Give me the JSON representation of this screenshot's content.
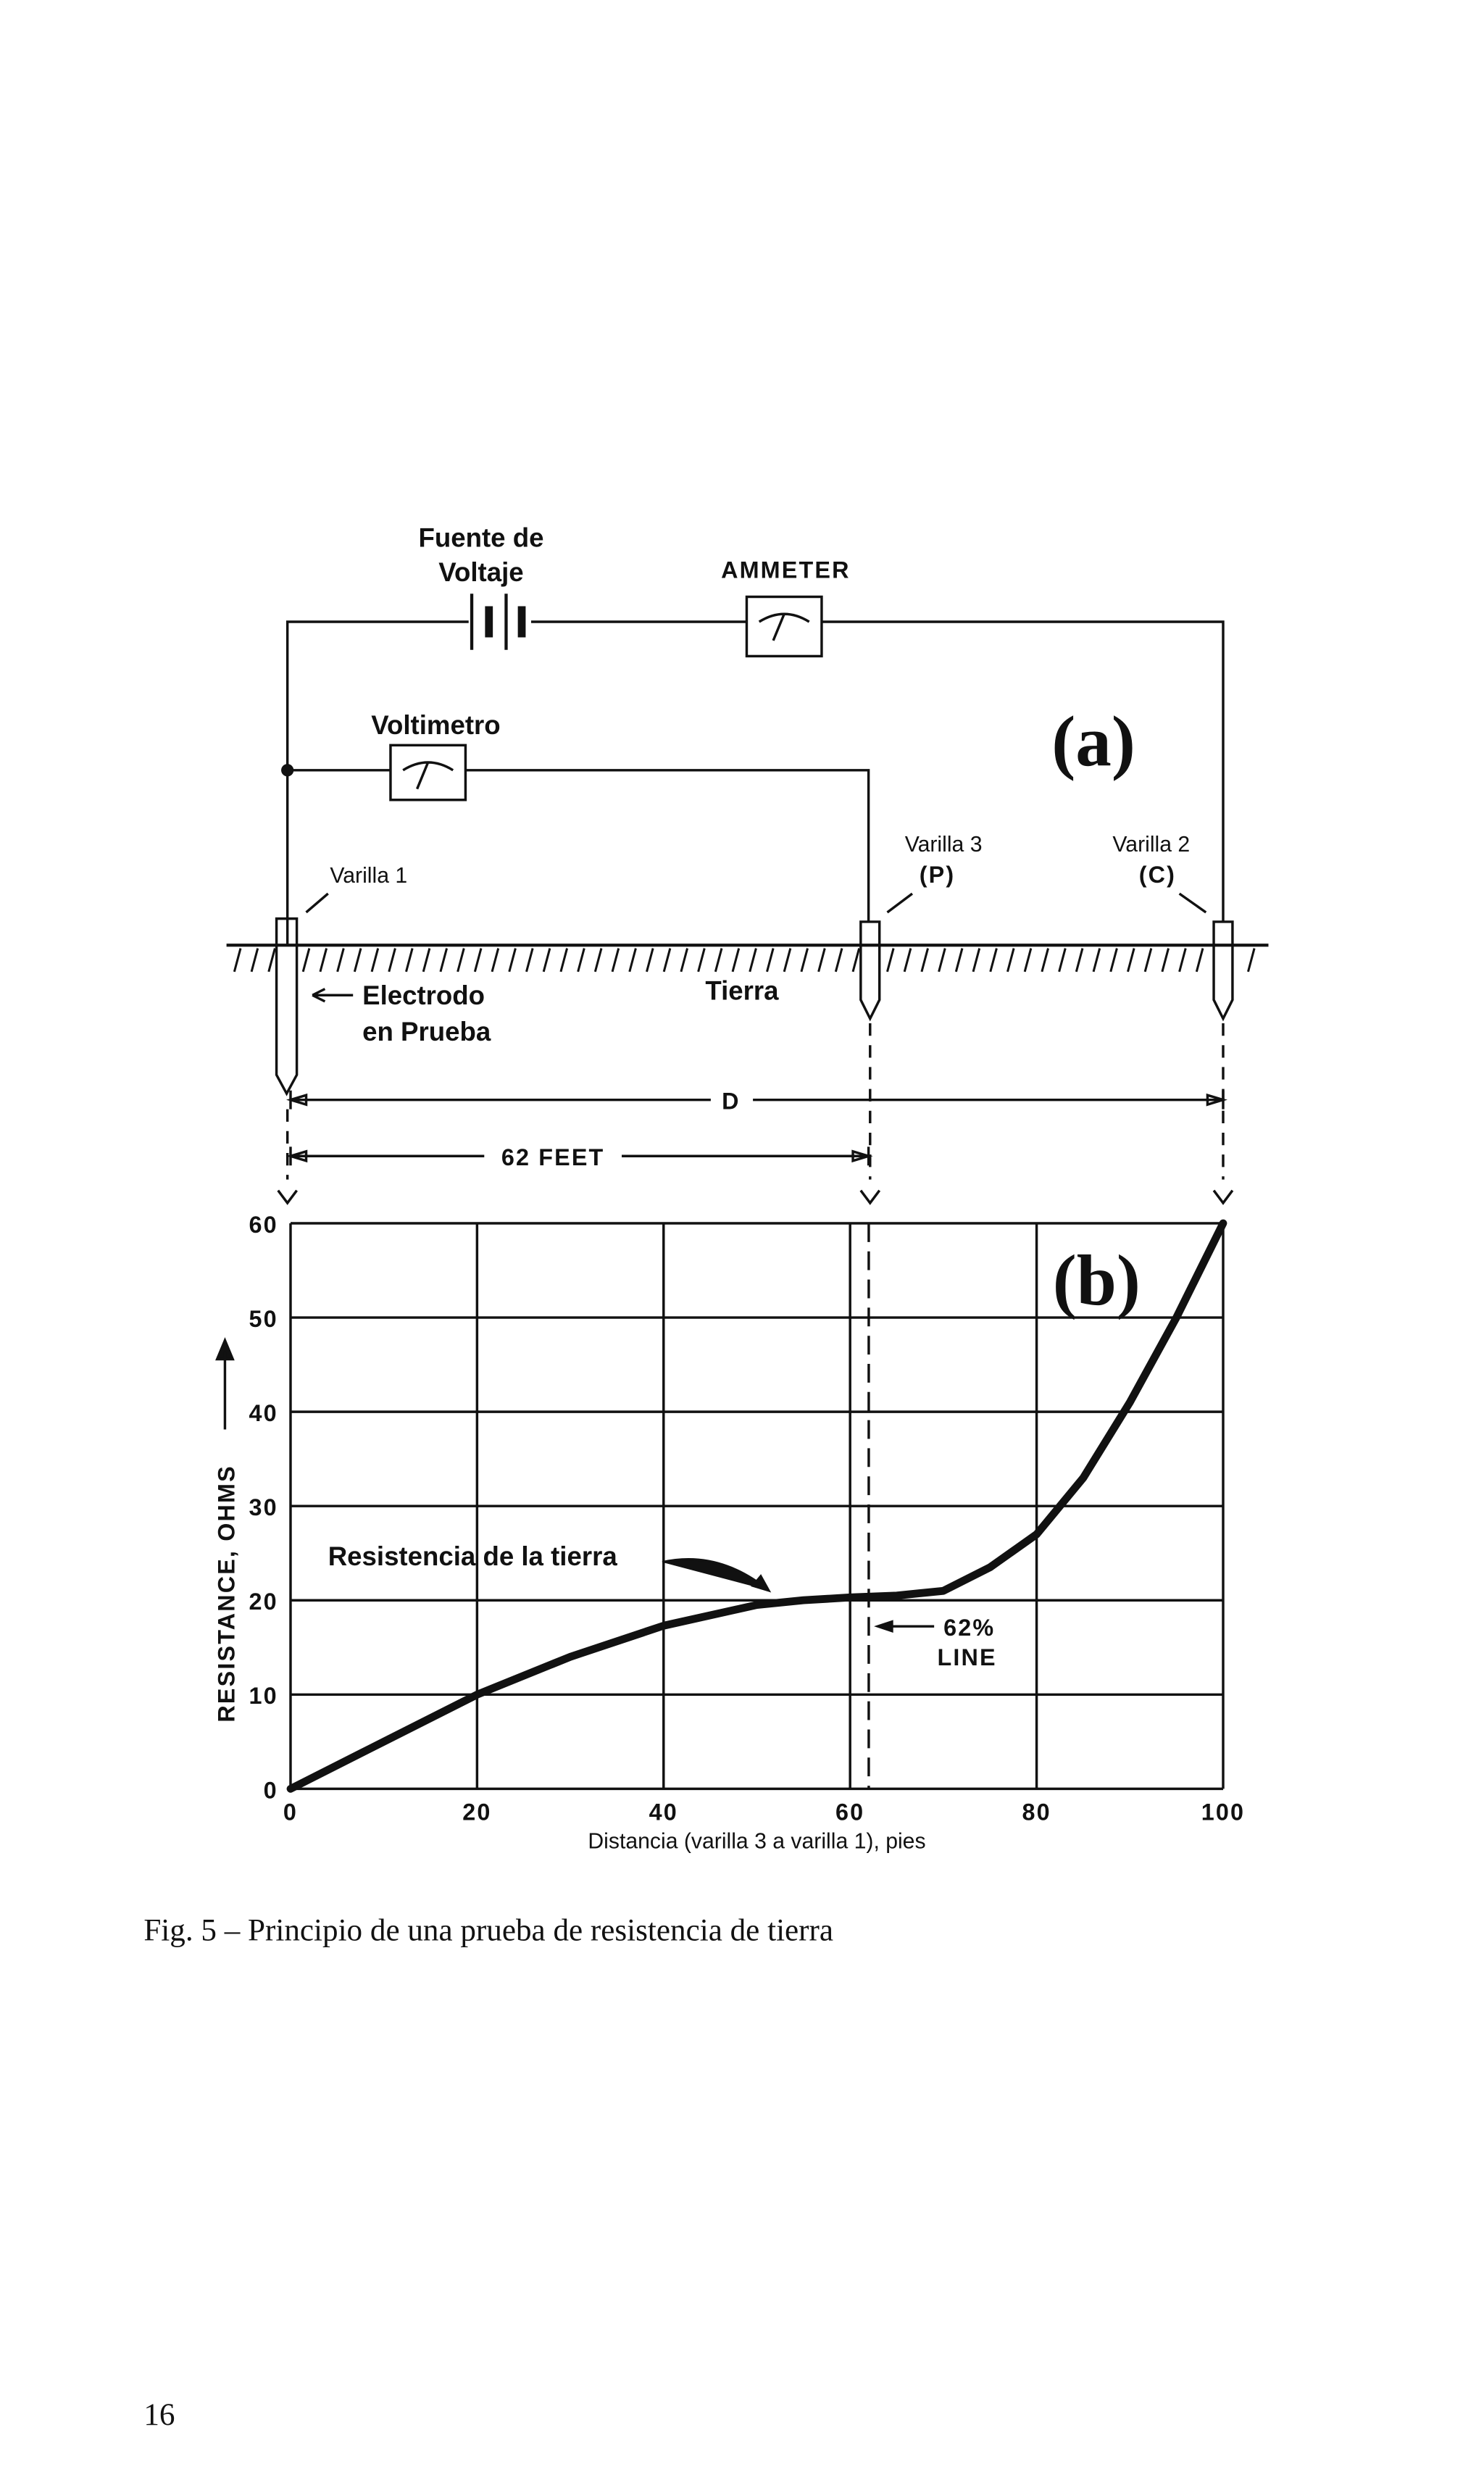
{
  "diagram": {
    "voltage_source": [
      "Fuente de",
      "Voltaje"
    ],
    "ammeter": "AMMETER",
    "voltmeter": "Voltimetro",
    "panel": "(a)",
    "rod1": "Varilla 1",
    "rod3": [
      "Varilla 3",
      "(P)"
    ],
    "rod2": [
      "Varilla 2",
      "(C)"
    ],
    "electrode": [
      "Electrodo",
      "en Prueba"
    ],
    "earth": "Tierra",
    "distance": "D",
    "distance_62": "62 FEET"
  },
  "chart_data": {
    "type": "line",
    "panel": "(b)",
    "y_label": "RESISTANCE, OHMS",
    "x_label": "Distancia (varilla 3 a varilla 1), pies",
    "x": [
      0,
      10,
      20,
      30,
      40,
      50,
      55,
      60,
      65,
      70,
      75,
      80,
      85,
      90,
      95,
      100
    ],
    "values": [
      0,
      5,
      10,
      14,
      17.3,
      19.5,
      20,
      20.3,
      20.5,
      21,
      23.5,
      27,
      33,
      41,
      50,
      60
    ],
    "color": "#111111",
    "xlim": [
      0,
      100
    ],
    "ylim": [
      0,
      60
    ],
    "xticks": [
      0,
      20,
      40,
      60,
      80,
      100
    ],
    "yticks": [
      0,
      10,
      20,
      30,
      40,
      50,
      60
    ],
    "grid": true,
    "vline": 62,
    "annotations": [
      "Resistencia de la tierra",
      "62%",
      "LINE"
    ]
  },
  "caption": "Fig. 5 – Principio de una prueba de resistencia de tierra",
  "page_number": "16"
}
